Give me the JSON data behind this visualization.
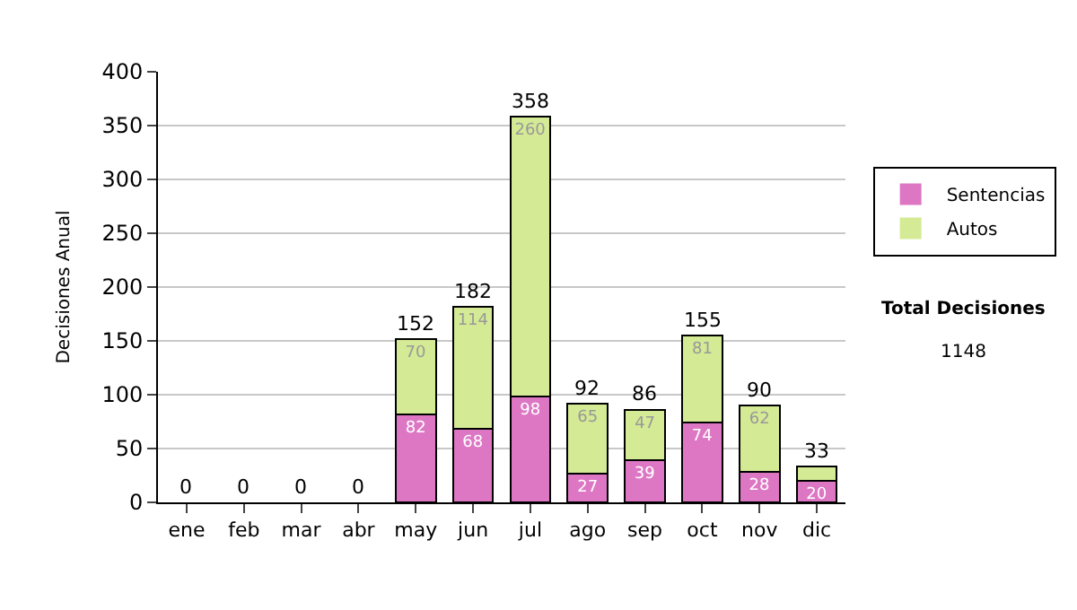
{
  "chart_data": {
    "type": "bar",
    "stacked": true,
    "ylabel": "Decisiones Anual",
    "categories": [
      "ene",
      "feb",
      "mar",
      "abr",
      "may",
      "jun",
      "jul",
      "ago",
      "sep",
      "oct",
      "nov",
      "dic"
    ],
    "series": [
      {
        "name": "Sentencias",
        "color": "#dd77c4",
        "values": [
          0,
          0,
          0,
          0,
          82,
          68,
          98,
          27,
          39,
          74,
          28,
          20
        ],
        "value_labels": [
          null,
          null,
          null,
          null,
          "82",
          "68",
          "98",
          "27",
          "39",
          "74",
          "28",
          "20"
        ]
      },
      {
        "name": "Autos",
        "color": "#d4ea94",
        "values": [
          0,
          0,
          0,
          0,
          70,
          114,
          260,
          65,
          47,
          81,
          62,
          13
        ],
        "value_labels": [
          null,
          null,
          null,
          null,
          "70",
          "114",
          "260",
          "65",
          "47",
          "81",
          "62",
          null
        ]
      }
    ],
    "totals": [
      "0",
      "0",
      "0",
      "0",
      "152",
      "182",
      "358",
      "92",
      "86",
      "155",
      "90",
      "33"
    ],
    "ylim": [
      0,
      400
    ],
    "yticks": [
      0,
      50,
      100,
      150,
      200,
      250,
      300,
      350,
      400
    ],
    "grid": "y",
    "legend": "right",
    "annotations": [
      "Total Decisiones",
      "1148"
    ]
  }
}
